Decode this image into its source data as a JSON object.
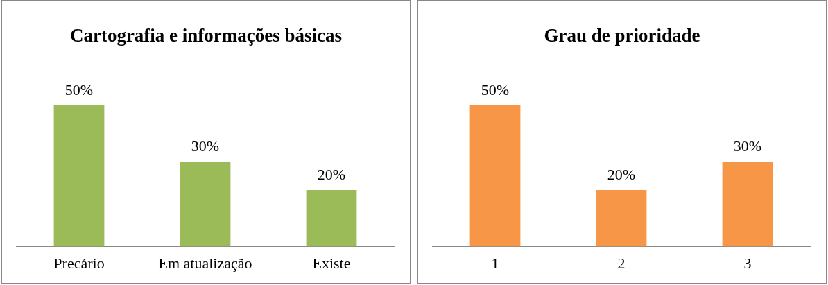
{
  "chart_data": [
    {
      "type": "bar",
      "title": "Cartografia e informações básicas",
      "categories": [
        "Precário",
        "Em atualização",
        "Existe"
      ],
      "values": [
        50,
        30,
        20
      ],
      "value_labels": [
        "50%",
        "30%",
        "20%"
      ],
      "color": "#9bbb59",
      "grid": false,
      "legend": false
    },
    {
      "type": "bar",
      "title": "Grau de prioridade",
      "categories": [
        "1",
        "2",
        "3"
      ],
      "values": [
        50,
        20,
        30
      ],
      "value_labels": [
        "50%",
        "20%",
        "30%"
      ],
      "color": "#f79646",
      "grid": false,
      "legend": false
    }
  ]
}
